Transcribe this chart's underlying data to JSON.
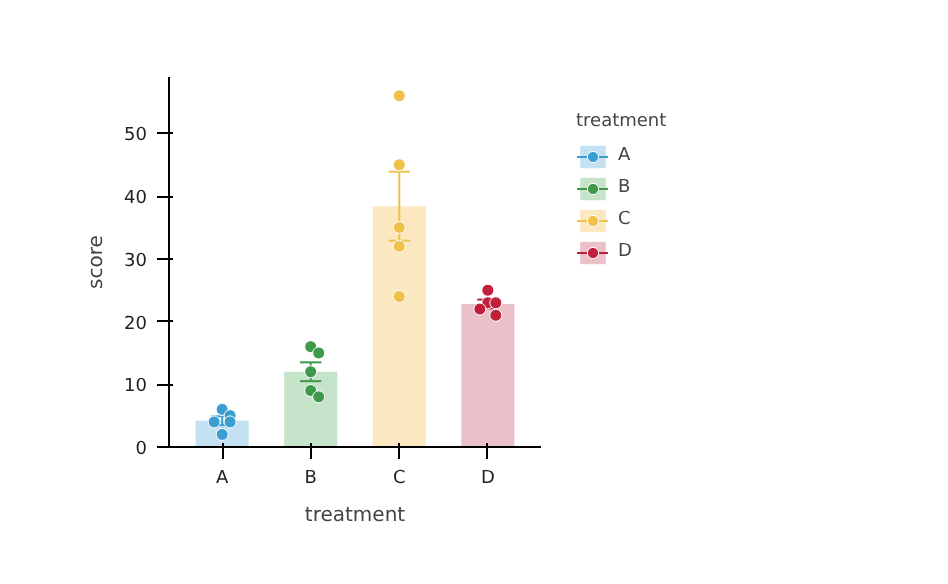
{
  "chart_data": {
    "type": "bar",
    "xlabel": "treatment",
    "ylabel": "score",
    "legend_title": "treatment",
    "categories": [
      "A",
      "B",
      "C",
      "D"
    ],
    "values": [
      4.2,
      12,
      38.4,
      22.8
    ],
    "colors": [
      "#c4e1f4",
      "#c6e4ca",
      "#fbe8c0",
      "#ebc0c8"
    ],
    "errors": [
      0.7,
      1.5,
      5.5,
      0.7
    ],
    "ylim": [
      0,
      59
    ],
    "yticks": [
      0,
      10,
      20,
      30,
      40,
      50
    ],
    "grid": false,
    "legend": "right",
    "series": [
      {
        "type": "scatter",
        "name": "A",
        "color": "#3a9fd0",
        "x": [
          "A",
          "A",
          "A",
          "A",
          "A"
        ],
        "values": [
          6,
          5,
          4,
          4,
          2
        ]
      },
      {
        "type": "scatter",
        "name": "B",
        "color": "#3e9a4a",
        "x": [
          "B",
          "B",
          "B",
          "B",
          "B"
        ],
        "values": [
          16,
          15,
          12,
          9,
          8
        ]
      },
      {
        "type": "scatter",
        "name": "C",
        "color": "#efc04a",
        "x": [
          "C",
          "C",
          "C",
          "C",
          "C"
        ],
        "values": [
          56,
          45,
          35,
          32,
          24
        ]
      },
      {
        "type": "scatter",
        "name": "D",
        "color": "#c0203a",
        "x": [
          "D",
          "D",
          "D",
          "D",
          "D"
        ],
        "values": [
          25,
          23,
          23,
          22,
          21
        ]
      }
    ]
  }
}
